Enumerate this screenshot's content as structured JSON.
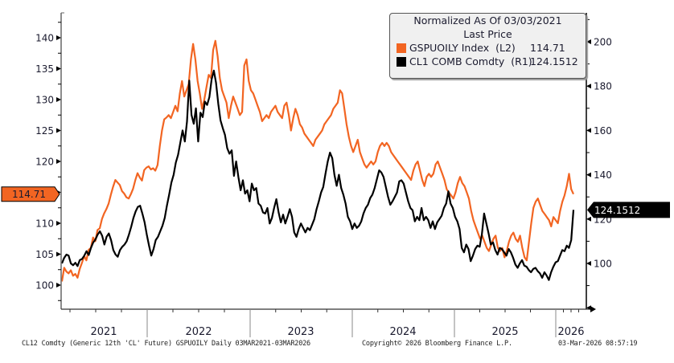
{
  "chart_data": {
    "type": "line",
    "title": "Normalized As Of 03/03/2021",
    "subtitle": "Last Price",
    "xlabel": "",
    "x_ticks": [
      "2021",
      "2022",
      "2023",
      "2024",
      "2025",
      "2026"
    ],
    "x_range": [
      "2021-03-03",
      "2026-03-03"
    ],
    "left_axis": {
      "ticks": [
        100,
        105,
        110,
        115,
        120,
        125,
        130,
        135,
        140
      ],
      "ylim": [
        97.5,
        142
      ],
      "current_value_tag": "114.71"
    },
    "right_axis": {
      "ticks": [
        100,
        120,
        140,
        160,
        180,
        200
      ],
      "ylim": [
        80,
        204
      ],
      "current_value_tag": "124.1512"
    },
    "grid": false,
    "legend_placement": "top-right",
    "series": [
      {
        "name": "GSPUOILY Index",
        "axis": "L2",
        "legend_label": "GSPUOILY Index  (L2)",
        "last_value": "114.71",
        "color": "#f26522",
        "x_frac_start": 0.0,
        "x_frac_end": 1.0,
        "values": [
          100.6,
          102.8,
          102.2,
          101.9,
          102.4,
          101.5,
          101.8,
          101.2,
          102.6,
          103.6,
          104.7,
          104.0,
          105.7,
          106.0,
          107.7,
          107.1,
          108.9,
          109.2,
          110.7,
          111.6,
          112.3,
          113.2,
          114.6,
          115.9,
          117.0,
          116.6,
          116.2,
          115.2,
          114.8,
          114.2,
          114.0,
          114.7,
          115.6,
          117.0,
          118.1,
          117.4,
          116.9,
          118.6,
          119.0,
          119.2,
          118.7,
          118.9,
          118.5,
          119.4,
          122.5,
          125.0,
          126.8,
          127.1,
          127.5,
          127.0,
          128.0,
          129.0,
          128.1,
          131.0,
          133.0,
          130.5,
          131.5,
          132.5,
          136.5,
          139.0,
          136.5,
          133.0,
          131.0,
          128.5,
          130.0,
          132.0,
          134.0,
          133.5,
          138.0,
          139.5,
          137.0,
          133.5,
          131.5,
          130.5,
          129.5,
          127.0,
          129.0,
          130.5,
          129.5,
          128.5,
          127.5,
          128.0,
          135.5,
          136.5,
          133.0,
          131.5,
          131.0,
          130.0,
          129.0,
          128.0,
          126.5,
          127.0,
          127.5,
          127.0,
          128.0,
          128.5,
          129.0,
          128.0,
          127.5,
          127.0,
          129.0,
          129.5,
          127.5,
          125.0,
          127.0,
          128.5,
          127.5,
          126.0,
          125.5,
          124.5,
          124.0,
          123.5,
          123.0,
          122.5,
          123.5,
          124.0,
          124.5,
          125.0,
          126.0,
          126.5,
          127.0,
          127.5,
          128.5,
          129.0,
          129.5,
          131.5,
          131.0,
          128.5,
          126.0,
          124.0,
          122.5,
          121.5,
          122.5,
          123.5,
          121.5,
          120.5,
          119.5,
          119.0,
          119.5,
          120.0,
          119.5,
          120.0,
          121.5,
          122.5,
          123.0,
          122.5,
          123.0,
          122.5,
          121.5,
          121.0,
          120.5,
          120.0,
          119.5,
          119.0,
          118.5,
          118.0,
          117.5,
          117.0,
          118.5,
          119.5,
          120.0,
          118.5,
          117.0,
          116.0,
          117.5,
          118.0,
          117.5,
          118.0,
          119.5,
          120.0,
          119.0,
          118.0,
          117.0,
          115.5,
          115.0,
          114.5,
          114.0,
          115.0,
          116.5,
          117.5,
          116.5,
          116.0,
          115.0,
          114.0,
          112.0,
          110.5,
          109.5,
          108.5,
          107.5,
          108.0,
          107.0,
          106.0,
          105.5,
          106.5,
          107.5,
          108.0,
          106.0,
          105.5,
          106.0,
          104.5,
          105.5,
          107.0,
          108.0,
          108.5,
          107.5,
          107.0,
          108.0,
          106.0,
          104.5,
          104.0,
          107.0,
          110.0,
          112.5,
          113.5,
          114.0,
          113.0,
          112.0,
          111.5,
          111.0,
          110.5,
          109.5,
          111.0,
          110.5,
          110.0,
          112.0,
          113.5,
          114.5,
          116.0,
          118.0,
          115.5,
          114.71
        ]
      },
      {
        "name": "CL1 COMB Comdty",
        "axis": "R1",
        "legend_label": "CL1 COMB Comdty  (R1)",
        "last_value": "124.1512",
        "color": "#000000",
        "x_frac_start": 0.0,
        "x_frac_end": 1.0,
        "values": [
          100.0,
          102.5,
          104.0,
          103.5,
          100.0,
          99.2,
          100.3,
          98.8,
          101.5,
          102.0,
          103.5,
          105.5,
          103.8,
          107.0,
          109.5,
          110.8,
          113.0,
          114.5,
          112.5,
          108.5,
          112.0,
          113.5,
          110.5,
          106.0,
          104.0,
          103.0,
          106.0,
          107.5,
          108.5,
          110.0,
          113.0,
          116.5,
          120.5,
          123.5,
          125.5,
          126.0,
          122.5,
          118.5,
          113.0,
          108.0,
          103.5,
          106.5,
          110.5,
          112.0,
          114.5,
          117.0,
          120.5,
          126.0,
          131.0,
          136.5,
          140.0,
          145.5,
          149.0,
          154.5,
          160.0,
          155.0,
          164.0,
          182.5,
          167.0,
          163.0,
          170.0,
          155.0,
          168.0,
          166.0,
          173.0,
          171.5,
          175.0,
          183.0,
          187.0,
          181.5,
          172.0,
          164.5,
          161.0,
          158.0,
          152.0,
          149.5,
          151.0,
          139.5,
          146.0,
          139.0,
          133.0,
          137.5,
          131.5,
          133.0,
          128.0,
          136.0,
          133.0,
          134.0,
          127.0,
          126.0,
          123.0,
          122.5,
          125.0,
          118.0,
          120.5,
          125.0,
          129.0,
          123.0,
          118.5,
          122.0,
          118.0,
          121.0,
          124.5,
          121.0,
          114.0,
          112.0,
          115.5,
          118.0,
          116.0,
          114.0,
          116.0,
          115.0,
          117.5,
          120.0,
          124.5,
          128.0,
          132.0,
          134.5,
          140.5,
          146.0,
          150.0,
          147.5,
          140.0,
          135.0,
          140.0,
          134.0,
          131.0,
          127.0,
          121.0,
          119.0,
          115.5,
          118.0,
          116.0,
          117.0,
          119.0,
          122.5,
          125.0,
          126.5,
          129.5,
          131.0,
          134.0,
          138.0,
          142.0,
          141.0,
          139.0,
          134.5,
          130.0,
          126.5,
          128.0,
          130.0,
          132.0,
          137.0,
          137.5,
          136.0,
          132.0,
          128.0,
          125.0,
          124.0,
          119.0,
          121.0,
          119.5,
          125.0,
          119.5,
          121.0,
          119.5,
          116.0,
          119.0,
          115.5,
          118.5,
          120.0,
          121.5,
          125.0,
          127.0,
          132.5,
          127.0,
          125.0,
          121.0,
          119.0,
          115.5,
          107.0,
          105.0,
          108.5,
          106.5,
          101.0,
          103.5,
          106.5,
          108.0,
          107.5,
          113.0,
          122.5,
          118.0,
          113.5,
          108.5,
          109.5,
          106.0,
          104.0,
          107.0,
          106.5,
          105.0,
          103.5,
          106.5,
          105.0,
          102.5,
          99.5,
          98.0,
          100.0,
          101.5,
          99.0,
          98.5,
          97.0,
          96.0,
          97.5,
          98.0,
          96.5,
          95.5,
          93.5,
          96.0,
          94.5,
          92.5,
          96.0,
          98.5,
          100.5,
          101.0,
          103.5,
          106.0,
          105.5,
          108.0,
          107.0,
          110.5,
          124.1512
        ]
      }
    ]
  },
  "legend": {
    "title": "Normalized As Of 03/03/2021",
    "subtitle": "Last Price",
    "items": [
      {
        "swatch_color": "#f26522",
        "label": "GSPUOILY Index  (L2)",
        "value": "114.71"
      },
      {
        "swatch_color": "#000000",
        "label": "CL1 COMB Comdty  (R1)",
        "value": "124.1512"
      }
    ]
  },
  "footer": {
    "left": "CL12 Comdty (Generic 12th 'CL' Future) GSPUOILY Daily 03MAR2021-03MAR2026",
    "center": "Copyright© 2026 Bloomberg Finance L.P.",
    "right": "03-Mar-2026 08:57:19"
  }
}
